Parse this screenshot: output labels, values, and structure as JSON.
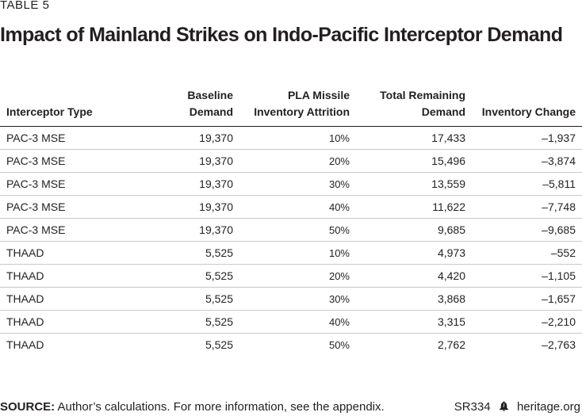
{
  "table_label": "TABLE 5",
  "title": "Impact of Mainland Strikes on Indo-Pacific Interceptor Demand",
  "columns": {
    "c1": "Interceptor Type",
    "c2_line1": "Baseline",
    "c2_line2": "Demand",
    "c3_line1": "PLA Missile",
    "c3_line2": "Inventory Attrition",
    "c4_line1": "Total Remaining",
    "c4_line2": "Demand",
    "c5": "Inventory Change"
  },
  "rows": [
    [
      "PAC-3 MSE",
      "19,370",
      "10%",
      "17,433",
      "–1,937"
    ],
    [
      "PAC-3 MSE",
      "19,370",
      "20%",
      "15,496",
      "–3,874"
    ],
    [
      "PAC-3 MSE",
      "19,370",
      "30%",
      "13,559",
      "–5,811"
    ],
    [
      "PAC-3 MSE",
      "19,370",
      "40%",
      "11,622",
      "–7,748"
    ],
    [
      "PAC-3 MSE",
      "19,370",
      "50%",
      "9,685",
      "–9,685"
    ],
    [
      "THAAD",
      "5,525",
      "10%",
      "4,973",
      "–552"
    ],
    [
      "THAAD",
      "5,525",
      "20%",
      "4,420",
      "–1,105"
    ],
    [
      "THAAD",
      "5,525",
      "30%",
      "3,868",
      "–1,657"
    ],
    [
      "THAAD",
      "5,525",
      "40%",
      "3,315",
      "–2,210"
    ],
    [
      "THAAD",
      "5,525",
      "50%",
      "2,762",
      "–2,763"
    ]
  ],
  "footer": {
    "source_label": "SOURCE:",
    "source_text": " Author’s calculations. For more information, see the appendix.",
    "report_id": "SR334",
    "site": "heritage.org",
    "icon": "liberty-bell-icon"
  }
}
